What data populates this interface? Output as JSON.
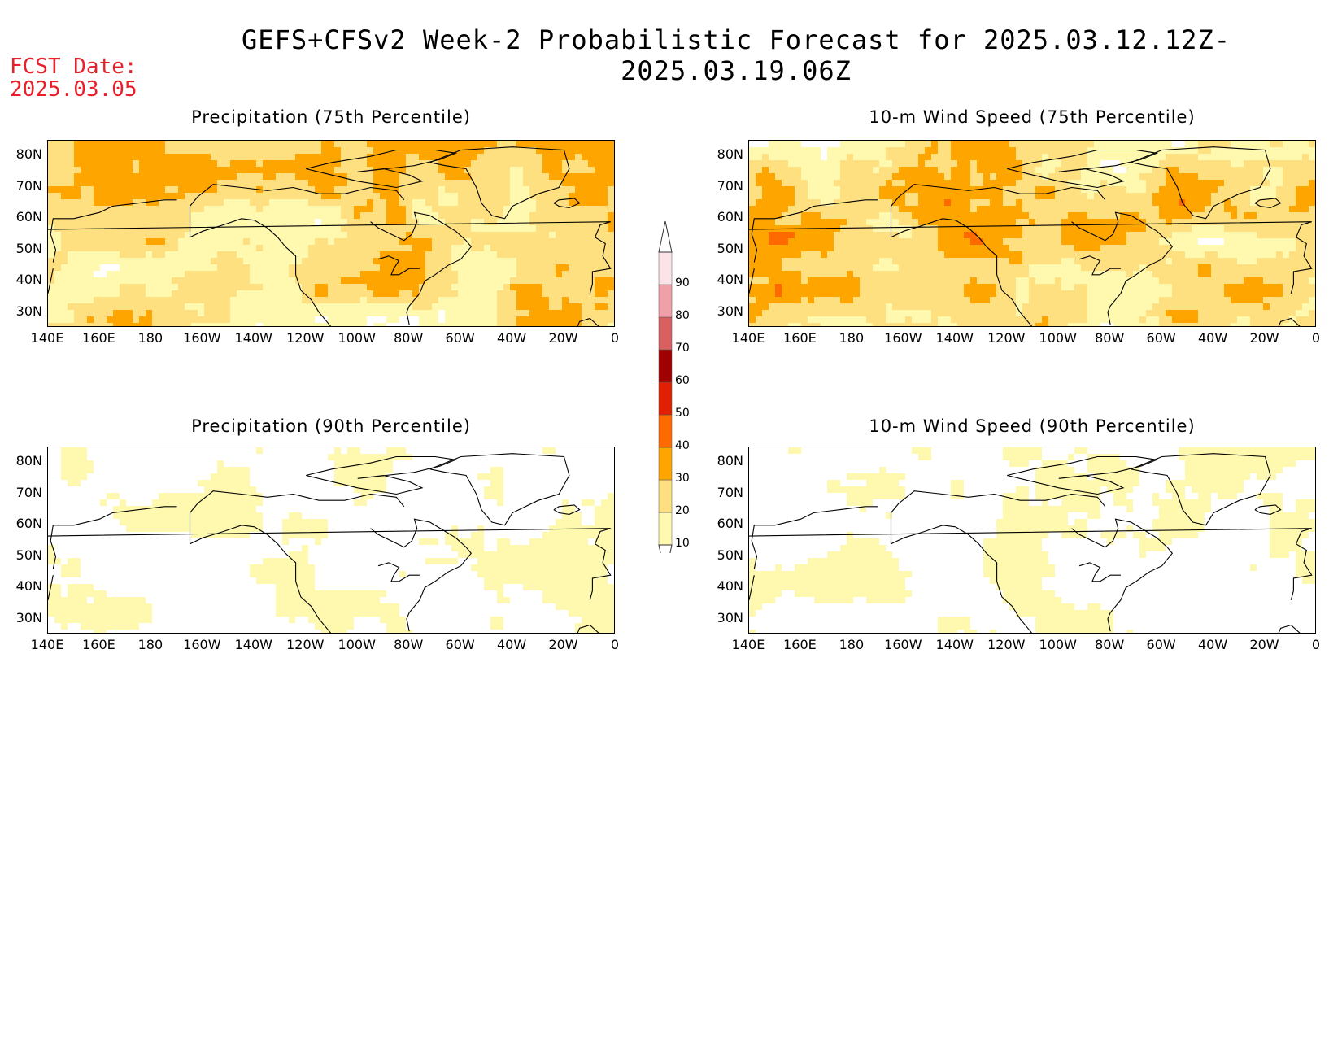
{
  "title": "GEFS+CFSv2 Week-2 Probabilistic Forecast for 2025.03.12.12Z-2025.03.19.06Z",
  "fcst_label": "FCST Date:",
  "fcst_date": "2025.03.05",
  "panels": [
    {
      "title": "Precipitation (75th Percentile)",
      "intensity": 0.75
    },
    {
      "title": "10-m Wind Speed (75th Percentile)",
      "intensity": 0.8
    },
    {
      "title": "Precipitation (90th Percentile)",
      "intensity": 0.3
    },
    {
      "title": "10-m Wind Speed (90th Percentile)",
      "intensity": 0.3
    }
  ],
  "lat_ticks": [
    "80N",
    "70N",
    "60N",
    "50N",
    "40N",
    "30N"
  ],
  "lon_ticks": [
    "140E",
    "160E",
    "180",
    "160W",
    "140W",
    "120W",
    "100W",
    "80W",
    "60W",
    "40W",
    "20W",
    "0"
  ],
  "colorbar": {
    "levels": [
      "10",
      "20",
      "30",
      "40",
      "50",
      "60",
      "70",
      "80",
      "90"
    ],
    "colors": [
      "#fff9b0",
      "#ffe080",
      "#ffa500",
      "#ff6a00",
      "#e02000",
      "#a00000",
      "#d86060",
      "#f0a0a8",
      "#fbe4e8"
    ]
  }
}
